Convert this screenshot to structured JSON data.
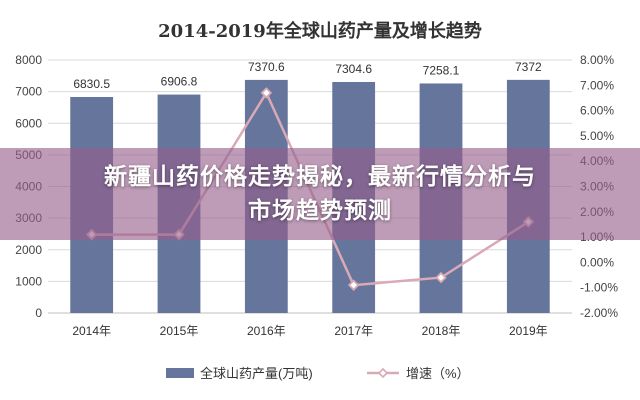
{
  "chart_data": {
    "type": "bar",
    "title": "2014-2019年全球山药产量及增长趋势",
    "categories": [
      "2014年",
      "2015年",
      "2016年",
      "2017年",
      "2018年",
      "2019年"
    ],
    "series": [
      {
        "name": "全球山药产量(万吨)",
        "type": "bar",
        "axis": "left",
        "values": [
          6830.5,
          6906.8,
          7370.6,
          7304.6,
          7258.1,
          7372
        ],
        "labels": [
          "6830.5",
          "6906.8",
          "7370.6",
          "7304.6",
          "7258.1",
          "7372"
        ],
        "color": "#65759c"
      },
      {
        "name": "增速（%）",
        "type": "line",
        "axis": "right",
        "values": [
          1.1,
          1.1,
          6.7,
          -0.9,
          -0.6,
          1.6
        ],
        "color": "#d9aab5"
      }
    ],
    "y_left": {
      "min": 0,
      "max": 8000,
      "ticks": [
        "0",
        "1000",
        "2000",
        "3000",
        "4000",
        "5000",
        "6000",
        "7000",
        "8000"
      ]
    },
    "y_right": {
      "min": -2,
      "max": 8,
      "ticks": [
        "-2.00%",
        "-1.00%",
        "0.00%",
        "1.00%",
        "2.00%",
        "3.00%",
        "4.00%",
        "5.00%",
        "6.00%",
        "7.00%",
        "8.00%"
      ]
    },
    "grid": true,
    "legend_position": "bottom"
  },
  "overlay": {
    "line1": "新疆山药价格走势揭秘，最新行情分析与",
    "line2": "市场趋势预测"
  }
}
